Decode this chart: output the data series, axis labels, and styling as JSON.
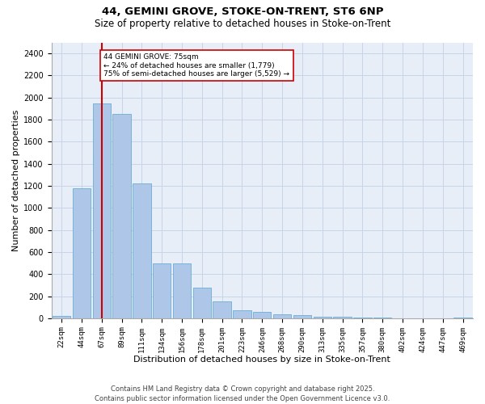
{
  "title1": "44, GEMINI GROVE, STOKE-ON-TRENT, ST6 6NP",
  "title2": "Size of property relative to detached houses in Stoke-on-Trent",
  "xlabel": "Distribution of detached houses by size in Stoke-on-Trent",
  "ylabel": "Number of detached properties",
  "categories": [
    "22sqm",
    "44sqm",
    "67sqm",
    "89sqm",
    "111sqm",
    "134sqm",
    "156sqm",
    "178sqm",
    "201sqm",
    "223sqm",
    "246sqm",
    "268sqm",
    "290sqm",
    "313sqm",
    "335sqm",
    "357sqm",
    "380sqm",
    "402sqm",
    "424sqm",
    "447sqm",
    "469sqm"
  ],
  "values": [
    20,
    1175,
    1950,
    1850,
    1225,
    500,
    500,
    280,
    155,
    75,
    60,
    35,
    30,
    10,
    10,
    5,
    5,
    2,
    2,
    2,
    5
  ],
  "bar_color": "#aec6e8",
  "bar_edge_color": "#6aadd5",
  "vline_color": "#cc0000",
  "vline_x": 2.0,
  "annotation_text": "44 GEMINI GROVE: 75sqm\n← 24% of detached houses are smaller (1,779)\n75% of semi-detached houses are larger (5,529) →",
  "annotation_box_color": "#ffffff",
  "annotation_box_edge": "#cc0000",
  "ylim": [
    0,
    2500
  ],
  "yticks": [
    0,
    200,
    400,
    600,
    800,
    1000,
    1200,
    1400,
    1600,
    1800,
    2000,
    2200,
    2400
  ],
  "grid_color": "#c8d4e8",
  "bg_color": "#e8eef8",
  "fig_bg_color": "#ffffff",
  "footer1": "Contains HM Land Registry data © Crown copyright and database right 2025.",
  "footer2": "Contains public sector information licensed under the Open Government Licence v3.0."
}
